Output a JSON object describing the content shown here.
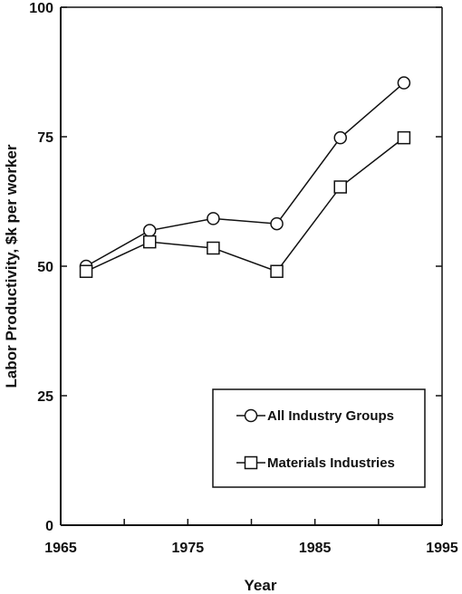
{
  "chart_data": {
    "type": "line",
    "title": "",
    "xlabel": "Year",
    "ylabel": "Labor Productivity, $k per worker",
    "xlim": [
      1965,
      1995
    ],
    "ylim": [
      0,
      100
    ],
    "x_ticks": [
      1965,
      1975,
      1985,
      1995
    ],
    "y_ticks": [
      0,
      25,
      50,
      75,
      100
    ],
    "x_tick_labels": [
      "1965",
      "1975",
      "1985",
      "1995"
    ],
    "y_tick_labels": [
      "0",
      "25",
      "50",
      "75",
      "100"
    ],
    "grid": false,
    "legend_position": "bottom-right",
    "series": [
      {
        "name": "All Industry Groups",
        "marker": "circle",
        "color": "#111111",
        "x": [
          1967,
          1972,
          1977,
          1982,
          1987,
          1992
        ],
        "values": [
          50.0,
          56.9,
          59.2,
          58.2,
          74.8,
          85.4
        ]
      },
      {
        "name": "Materials Industries",
        "marker": "square",
        "color": "#111111",
        "x": [
          1967,
          1972,
          1977,
          1982,
          1987,
          1992
        ],
        "values": [
          49.0,
          54.7,
          53.5,
          49.0,
          65.3,
          74.8
        ]
      }
    ]
  }
}
